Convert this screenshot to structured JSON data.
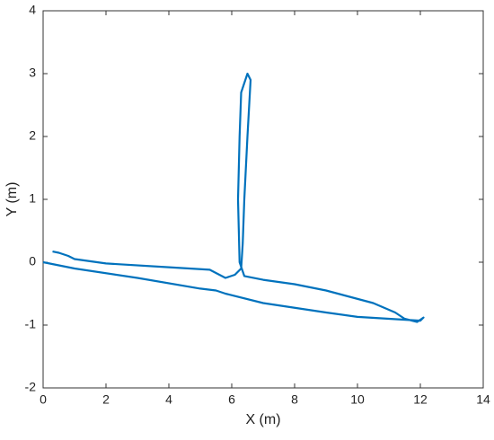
{
  "chart_data": {
    "type": "line",
    "xlabel": "X (m)",
    "ylabel": "Y (m)",
    "xlim": [
      0,
      14
    ],
    "xticks": [
      0,
      2,
      4,
      6,
      8,
      10,
      12,
      14
    ],
    "ylim": [
      -2,
      4
    ],
    "yticks": [
      -2,
      -1,
      0,
      1,
      2,
      3,
      4
    ],
    "series": [
      {
        "color": "#0072bd",
        "x": [
          0,
          1,
          3,
          5,
          5.5,
          5.8,
          7,
          9,
          10,
          11,
          12,
          12.1,
          11.9,
          11.5,
          11.2,
          10.5,
          9,
          8,
          7,
          6.4,
          6.25,
          6.2,
          6.25,
          6.3,
          6.5,
          6.6,
          6.5,
          6.4,
          6.35,
          6.3,
          6.1,
          5.8,
          5.3,
          4,
          2,
          1,
          0.8,
          0.5,
          0.3
        ],
        "values": [
          0,
          -0.1,
          -0.25,
          -0.42,
          -0.45,
          -0.5,
          -0.65,
          -0.8,
          -0.87,
          -0.9,
          -0.93,
          -0.88,
          -0.95,
          -0.9,
          -0.8,
          -0.65,
          -0.45,
          -0.35,
          -0.28,
          -0.22,
          0,
          1,
          2,
          2.7,
          3.0,
          2.9,
          2,
          1,
          0.3,
          -0.1,
          -0.2,
          -0.25,
          -0.12,
          -0.08,
          -0.02,
          0.05,
          0.1,
          0.15,
          0.17
        ]
      }
    ]
  }
}
